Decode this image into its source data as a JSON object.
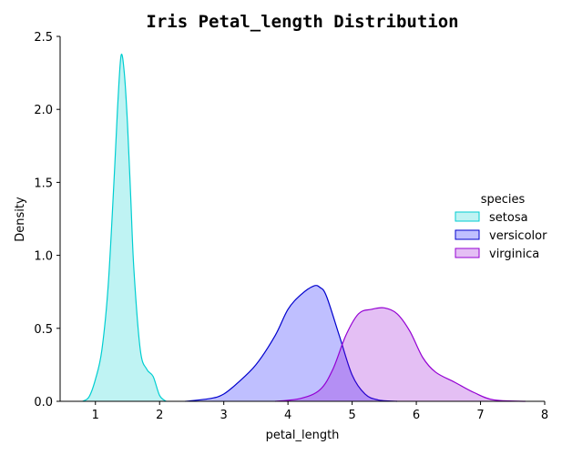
{
  "chart_data": {
    "type": "area",
    "title": "Iris Petal_length Distribution",
    "xlabel": "petal_length",
    "ylabel": "Density",
    "xlim": [
      0.45,
      8.0
    ],
    "ylim": [
      0,
      2.5
    ],
    "xticks": [
      1,
      2,
      3,
      4,
      5,
      6,
      7,
      8
    ],
    "yticks": [
      0.0,
      0.5,
      1.0,
      1.5,
      2.0,
      2.5
    ],
    "ytick_labels": [
      "0.0",
      "0.5",
      "1.0",
      "1.5",
      "2.0",
      "2.5"
    ],
    "grid": false,
    "legend": {
      "title": "species",
      "placement": "center-right"
    },
    "series": [
      {
        "name": "setosa",
        "color": "#00CED1",
        "fill": "rgba(0,206,209,0.25)",
        "x": [
          0.8,
          0.9,
          1.0,
          1.1,
          1.2,
          1.3,
          1.35,
          1.4,
          1.45,
          1.5,
          1.55,
          1.6,
          1.7,
          1.8,
          1.9,
          2.0,
          2.1
        ],
        "y": [
          0.0,
          0.03,
          0.15,
          0.35,
          0.8,
          1.6,
          2.05,
          2.37,
          2.25,
          1.9,
          1.4,
          0.9,
          0.35,
          0.22,
          0.17,
          0.04,
          0.0
        ]
      },
      {
        "name": "versicolor",
        "color": "#0000CD",
        "fill": "rgba(0,0,255,0.25)",
        "x": [
          2.4,
          2.8,
          3.0,
          3.2,
          3.5,
          3.8,
          4.0,
          4.2,
          4.4,
          4.5,
          4.6,
          4.8,
          5.0,
          5.2,
          5.4,
          5.7
        ],
        "y": [
          0.0,
          0.02,
          0.05,
          0.12,
          0.25,
          0.45,
          0.63,
          0.73,
          0.79,
          0.78,
          0.72,
          0.45,
          0.18,
          0.05,
          0.01,
          0.0
        ]
      },
      {
        "name": "virginica",
        "color": "#9400D3",
        "fill": "rgba(148,0,211,0.25)",
        "x": [
          3.8,
          4.2,
          4.5,
          4.7,
          4.9,
          5.1,
          5.3,
          5.5,
          5.7,
          5.9,
          6.1,
          6.3,
          6.6,
          6.9,
          7.2,
          7.7
        ],
        "y": [
          0.0,
          0.02,
          0.08,
          0.22,
          0.45,
          0.6,
          0.63,
          0.64,
          0.6,
          0.48,
          0.3,
          0.2,
          0.13,
          0.06,
          0.01,
          0.0
        ]
      }
    ]
  }
}
